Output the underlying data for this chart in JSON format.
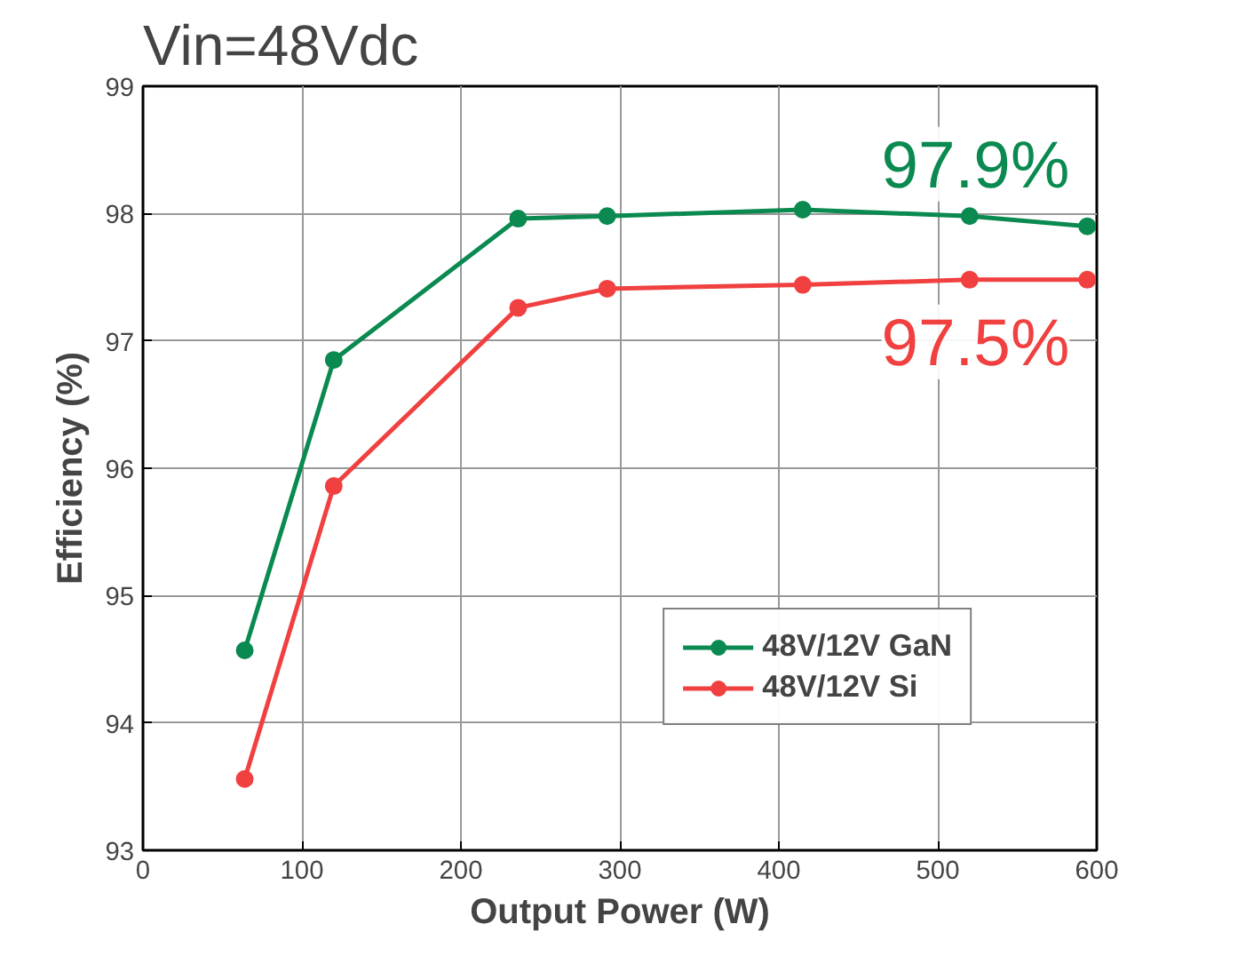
{
  "chart_data": {
    "type": "line",
    "title": "Vin=48Vdc",
    "xlabel": "Output Power (W)",
    "ylabel": "Efficiency (%)",
    "x": [
      64,
      120,
      236,
      292,
      415,
      520,
      594
    ],
    "series": [
      {
        "name": "48V/12V GaN",
        "color": "#0a8a50",
        "values": [
          94.57,
          96.85,
          97.96,
          97.98,
          98.03,
          97.98,
          97.9
        ]
      },
      {
        "name": "48V/12V Si",
        "color": "#f04040",
        "values": [
          93.56,
          95.86,
          97.26,
          97.41,
          97.44,
          97.48,
          97.48
        ]
      }
    ],
    "annotations": [
      {
        "text": "97.9%",
        "x": 594,
        "y": 97.9
      },
      {
        "text": "97.5%",
        "x": 594,
        "y": 97.48
      }
    ],
    "xlim": [
      0,
      600
    ],
    "ylim": [
      93,
      99
    ],
    "xticks": [
      0,
      100,
      200,
      300,
      400,
      500,
      600
    ],
    "yticks": [
      93,
      94,
      95,
      96,
      97,
      98,
      99
    ],
    "grid": true,
    "legend": "bottom right",
    "marker": "circle",
    "line_style": "solid"
  }
}
